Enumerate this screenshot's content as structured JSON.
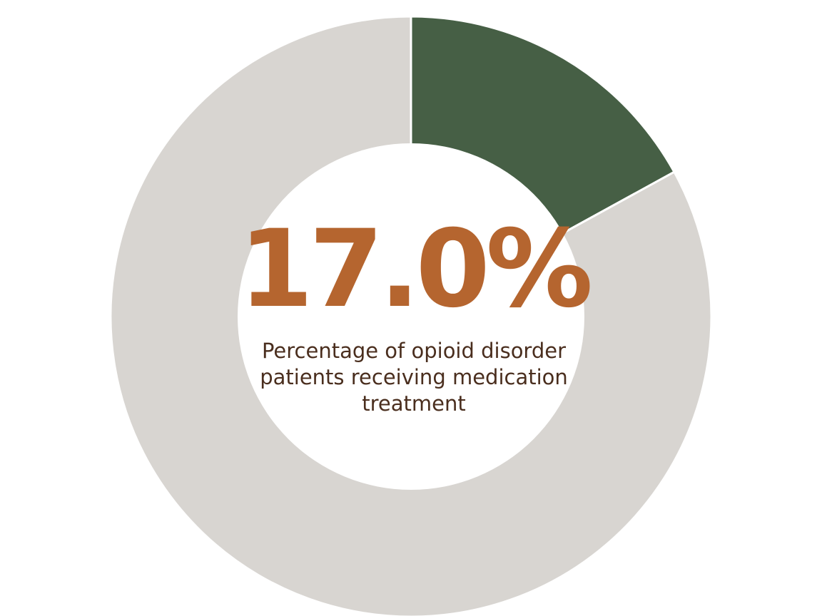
{
  "chart_data": {
    "type": "pie",
    "donut": true,
    "values": [
      17.0,
      83.0
    ],
    "value_labels": [
      "17.0%",
      null
    ],
    "colors": [
      "#465f45",
      "#d8d5d1"
    ],
    "caption": [
      "Percentage of opioid disorder",
      "patients receiving medication",
      "treatment"
    ]
  }
}
